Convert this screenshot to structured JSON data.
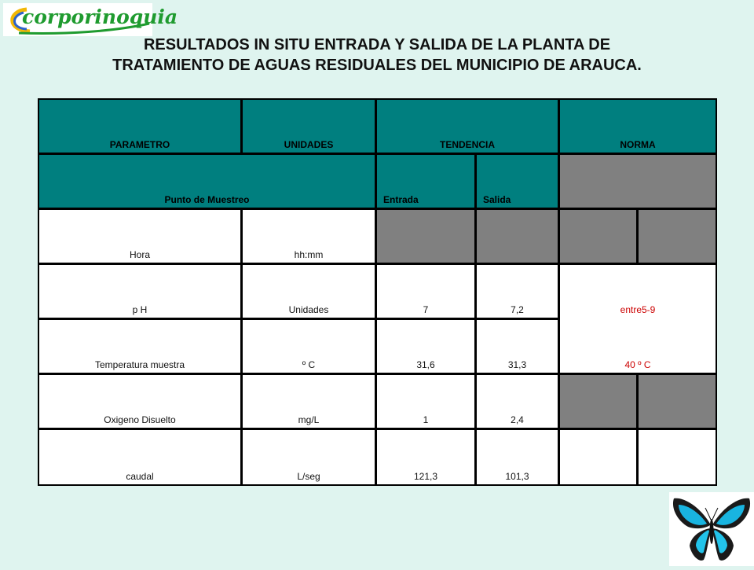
{
  "logo": {
    "text": "corporinoquia"
  },
  "title": {
    "line1": "RESULTADOS IN SITU ENTRADA Y SALIDA DE LA PLANTA DE",
    "line2": "TRATAMIENTO DE AGUAS RESIDUALES DEL MUNICIPIO DE ARAUCA."
  },
  "colors": {
    "header_teal": "#007f7f",
    "grey_cell": "#808080",
    "norma_red": "#cc0000",
    "background": "#dff4ef"
  },
  "table": {
    "headers": {
      "parametro": "PARAMETRO",
      "unidades": "UNIDADES",
      "tendencia": "TENDENCIA",
      "norma": "NORMA"
    },
    "subheaders": {
      "punto": "Punto de Muestreo",
      "entrada": "Entrada",
      "salida": "Salida"
    },
    "rows": [
      {
        "parametro": "Hora",
        "unidades": "hh:mm",
        "entrada": "",
        "salida": ""
      },
      {
        "parametro": "p H",
        "unidades": "Unidades",
        "entrada": "7",
        "salida": "7,2"
      },
      {
        "parametro": "Temperatura  muestra",
        "unidades": "º C",
        "entrada": "31,6",
        "salida": "31,3"
      },
      {
        "parametro": "Oxigeno  Disuelto",
        "unidades": "mg/L",
        "entrada": "1",
        "salida": "2,4"
      },
      {
        "parametro": "caudal",
        "unidades": "L/seg",
        "entrada": "121,3",
        "salida": "101,3"
      }
    ],
    "norma": {
      "ph": "entre5-9",
      "temperatura": "40 º C"
    }
  }
}
